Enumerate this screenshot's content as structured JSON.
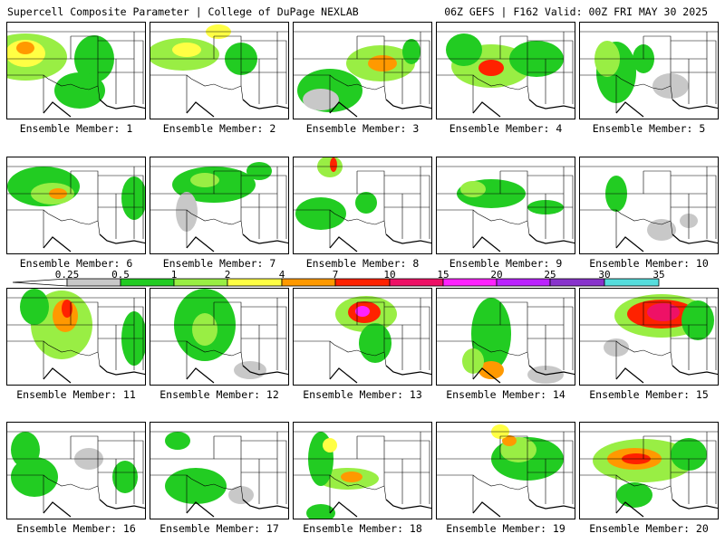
{
  "header": {
    "left": "Supercell Composite Parameter | College of DuPage NEXLAB",
    "right": "06Z GEFS | F162 Valid: 00Z FRI MAY 30 2025"
  },
  "colorbar": {
    "ticks": [
      "0.25",
      "0.5",
      "1",
      "2",
      "4",
      "7",
      "10",
      "15",
      "20",
      "25",
      "30",
      "35"
    ],
    "colors": [
      "#c8c8c8",
      "#22cc22",
      "#99ee44",
      "#ffff44",
      "#ff9900",
      "#ff2200",
      "#ee1166",
      "#ff22ff",
      "#bb22ff",
      "#8833cc",
      "#55dddd"
    ]
  },
  "members": [
    {
      "label": "Ensemble Member: 1",
      "blobs": [
        [
          20,
          38,
          46,
          26,
          2
        ],
        [
          20,
          34,
          22,
          15,
          3
        ],
        [
          20,
          28,
          10,
          7,
          4
        ],
        [
          96,
          40,
          22,
          26,
          1
        ],
        [
          80,
          75,
          28,
          20,
          1
        ]
      ]
    },
    {
      "label": "Ensemble Member: 2",
      "blobs": [
        [
          36,
          35,
          40,
          18,
          2
        ],
        [
          40,
          30,
          16,
          8,
          3
        ],
        [
          75,
          10,
          14,
          8,
          3
        ],
        [
          100,
          40,
          18,
          18,
          1
        ]
      ]
    },
    {
      "label": "Ensemble Member: 3",
      "blobs": [
        [
          40,
          75,
          36,
          24,
          1
        ],
        [
          96,
          45,
          38,
          20,
          2
        ],
        [
          98,
          45,
          16,
          9,
          4
        ],
        [
          130,
          32,
          10,
          14,
          1
        ],
        [
          30,
          85,
          20,
          12,
          0
        ]
      ]
    },
    {
      "label": "Ensemble Member: 4",
      "blobs": [
        [
          60,
          48,
          44,
          24,
          2
        ],
        [
          60,
          50,
          14,
          9,
          5
        ],
        [
          30,
          30,
          20,
          18,
          1
        ],
        [
          110,
          40,
          30,
          20,
          1
        ]
      ]
    },
    {
      "label": "Ensemble Member: 5",
      "blobs": [
        [
          40,
          55,
          22,
          34,
          1
        ],
        [
          30,
          40,
          14,
          20,
          2
        ],
        [
          100,
          70,
          20,
          14,
          0
        ],
        [
          70,
          40,
          12,
          16,
          1
        ]
      ]
    },
    {
      "label": "Ensemble Member: 6",
      "blobs": [
        [
          40,
          32,
          40,
          22,
          1
        ],
        [
          50,
          40,
          24,
          12,
          2
        ],
        [
          56,
          40,
          10,
          6,
          4
        ],
        [
          140,
          45,
          14,
          24,
          1
        ]
      ]
    },
    {
      "label": "Ensemble Member: 7",
      "blobs": [
        [
          70,
          30,
          46,
          20,
          1
        ],
        [
          60,
          25,
          16,
          8,
          2
        ],
        [
          120,
          15,
          14,
          10,
          1
        ],
        [
          40,
          60,
          12,
          22,
          0
        ]
      ]
    },
    {
      "label": "Ensemble Member: 8",
      "blobs": [
        [
          40,
          10,
          14,
          12,
          2
        ],
        [
          44,
          8,
          4,
          8,
          5
        ],
        [
          30,
          62,
          28,
          18,
          1
        ],
        [
          80,
          50,
          12,
          12,
          1
        ]
      ]
    },
    {
      "label": "Ensemble Member: 9",
      "blobs": [
        [
          60,
          40,
          38,
          16,
          1
        ],
        [
          40,
          35,
          14,
          9,
          2
        ],
        [
          120,
          55,
          20,
          8,
          1
        ]
      ]
    },
    {
      "label": "Ensemble Member: 10",
      "blobs": [
        [
          40,
          40,
          12,
          20,
          1
        ],
        [
          90,
          80,
          16,
          12,
          0
        ],
        [
          120,
          70,
          10,
          8,
          0
        ]
      ]
    },
    {
      "label": "Ensemble Member: 11",
      "blobs": [
        [
          60,
          40,
          34,
          38,
          2
        ],
        [
          64,
          30,
          14,
          18,
          4
        ],
        [
          66,
          22,
          6,
          10,
          5
        ],
        [
          30,
          20,
          16,
          20,
          1
        ],
        [
          140,
          55,
          14,
          30,
          1
        ]
      ]
    },
    {
      "label": "Ensemble Member: 12",
      "blobs": [
        [
          60,
          40,
          34,
          40,
          1
        ],
        [
          60,
          45,
          14,
          18,
          2
        ],
        [
          110,
          90,
          18,
          10,
          0
        ]
      ]
    },
    {
      "label": "Ensemble Member: 13",
      "blobs": [
        [
          80,
          28,
          34,
          20,
          2
        ],
        [
          78,
          26,
          18,
          12,
          5
        ],
        [
          76,
          25,
          8,
          6,
          7
        ],
        [
          90,
          60,
          18,
          22,
          1
        ]
      ]
    },
    {
      "label": "Ensemble Member: 14",
      "blobs": [
        [
          60,
          50,
          22,
          40,
          1
        ],
        [
          60,
          90,
          14,
          10,
          4
        ],
        [
          120,
          95,
          20,
          10,
          0
        ],
        [
          40,
          80,
          12,
          14,
          2
        ]
      ]
    },
    {
      "label": "Ensemble Member: 15",
      "blobs": [
        [
          90,
          30,
          52,
          24,
          2
        ],
        [
          90,
          28,
          38,
          16,
          5
        ],
        [
          92,
          26,
          18,
          10,
          6
        ],
        [
          130,
          35,
          18,
          22,
          1
        ],
        [
          40,
          65,
          14,
          10,
          0
        ]
      ]
    },
    {
      "label": "Ensemble Member: 16",
      "blobs": [
        [
          30,
          60,
          26,
          22,
          1
        ],
        [
          20,
          30,
          16,
          20,
          1
        ],
        [
          90,
          40,
          16,
          12,
          0
        ],
        [
          130,
          60,
          14,
          18,
          1
        ]
      ]
    },
    {
      "label": "Ensemble Member: 17",
      "blobs": [
        [
          50,
          70,
          34,
          20,
          1
        ],
        [
          30,
          20,
          14,
          10,
          1
        ],
        [
          100,
          80,
          14,
          10,
          0
        ]
      ]
    },
    {
      "label": "Ensemble Member: 18",
      "blobs": [
        [
          60,
          62,
          34,
          12,
          2
        ],
        [
          64,
          60,
          12,
          6,
          4
        ],
        [
          30,
          40,
          14,
          30,
          1
        ],
        [
          40,
          25,
          8,
          8,
          3
        ],
        [
          30,
          100,
          16,
          10,
          1
        ]
      ]
    },
    {
      "label": "Ensemble Member: 19",
      "blobs": [
        [
          100,
          40,
          40,
          24,
          1
        ],
        [
          90,
          30,
          20,
          14,
          2
        ],
        [
          80,
          20,
          8,
          6,
          4
        ],
        [
          70,
          10,
          10,
          8,
          3
        ]
      ]
    },
    {
      "label": "Ensemble Member: 20",
      "blobs": [
        [
          70,
          42,
          56,
          24,
          2
        ],
        [
          60,
          40,
          30,
          12,
          4
        ],
        [
          62,
          40,
          16,
          6,
          5
        ],
        [
          120,
          35,
          20,
          18,
          1
        ],
        [
          60,
          80,
          20,
          14,
          1
        ]
      ]
    }
  ]
}
